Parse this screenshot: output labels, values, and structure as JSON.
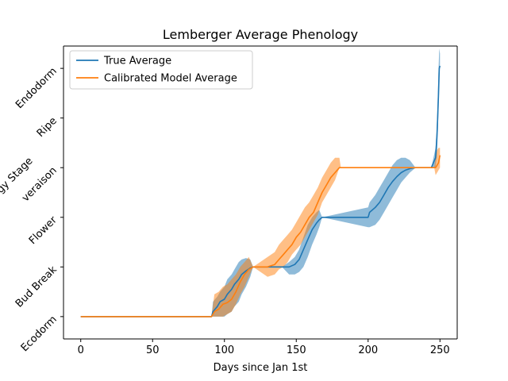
{
  "chart_data": {
    "type": "line",
    "title": "Lemberger Average Phenology",
    "xlabel": "Days since Jan 1st",
    "ylabel": "Phenology Stage",
    "xlim": [
      -12,
      262
    ],
    "ylim": [
      -0.45,
      5.45
    ],
    "x_ticks": [
      0,
      50,
      100,
      150,
      200,
      250
    ],
    "y_ticks": [
      {
        "value": 0,
        "label": "Ecodorm"
      },
      {
        "value": 1,
        "label": "Bud Break"
      },
      {
        "value": 2,
        "label": "Flower"
      },
      {
        "value": 3,
        "label": "veraison"
      },
      {
        "value": 4,
        "label": "Ripe"
      },
      {
        "value": 5,
        "label": "Endodorm"
      }
    ],
    "legend_position": "top-left",
    "grid": false,
    "series": [
      {
        "name": "True Average",
        "color": "#1f77b4",
        "band_color": "#1f77b4",
        "x": [
          0,
          91,
          92,
          95,
          97,
          100,
          102,
          105,
          107,
          110,
          112,
          115,
          118,
          120,
          125,
          130,
          140,
          145,
          149,
          152,
          155,
          158,
          161,
          164,
          166,
          168,
          200,
          201,
          205,
          208,
          211,
          214,
          217,
          220,
          223,
          226,
          229,
          233,
          244,
          247,
          248,
          249,
          249.5,
          250
        ],
        "y": [
          0,
          0,
          0.1,
          0.2,
          0.3,
          0.35,
          0.45,
          0.55,
          0.65,
          0.75,
          0.85,
          0.92,
          0.98,
          1.0,
          1.0,
          1.0,
          1.0,
          1.0,
          1.05,
          1.15,
          1.35,
          1.55,
          1.75,
          1.88,
          1.95,
          2.0,
          2.0,
          2.1,
          2.2,
          2.3,
          2.45,
          2.6,
          2.72,
          2.82,
          2.9,
          2.95,
          2.98,
          3.0,
          3.0,
          3.2,
          3.7,
          4.5,
          5.0,
          5.05
        ],
        "lower": [
          0,
          0,
          0,
          0,
          0.0,
          0.0,
          0.05,
          0.1,
          0.2,
          0.3,
          0.45,
          0.6,
          0.8,
          1.0,
          1.0,
          1.0,
          1.0,
          0.85,
          0.85,
          0.9,
          1.0,
          1.2,
          1.45,
          1.65,
          1.8,
          2.0,
          1.8,
          1.8,
          1.85,
          1.95,
          2.1,
          2.25,
          2.4,
          2.55,
          2.7,
          2.8,
          2.9,
          3.0,
          3.0,
          3.0,
          3.3,
          4.2,
          4.9,
          5.0
        ],
        "upper": [
          0,
          0,
          0.3,
          0.4,
          0.5,
          0.6,
          0.75,
          0.85,
          0.95,
          1.1,
          1.15,
          1.18,
          1.15,
          1.0,
          1.0,
          1.0,
          1.0,
          1.1,
          1.2,
          1.35,
          1.6,
          1.85,
          2.0,
          2.1,
          2.15,
          2.0,
          2.2,
          2.3,
          2.45,
          2.6,
          2.75,
          2.9,
          3.05,
          3.15,
          3.2,
          3.2,
          3.15,
          3.0,
          3.0,
          3.4,
          4.0,
          5.0,
          5.4,
          5.3
        ]
      },
      {
        "name": "Calibrated Model Average",
        "color": "#ff7f0e",
        "band_color": "#ff7f0e",
        "x": [
          0,
          91,
          93,
          96,
          99,
          102,
          105,
          108,
          111,
          114,
          117,
          120,
          130,
          135,
          138,
          141,
          144,
          147,
          150,
          153,
          156,
          159,
          162,
          165,
          168,
          171,
          174,
          177,
          180,
          181,
          200,
          246,
          247,
          248,
          249,
          250
        ],
        "y": [
          0,
          0,
          0.1,
          0.15,
          0.25,
          0.28,
          0.35,
          0.5,
          0.7,
          0.85,
          0.95,
          1.0,
          1.0,
          1.05,
          1.15,
          1.25,
          1.35,
          1.45,
          1.6,
          1.7,
          1.85,
          2.0,
          2.1,
          2.3,
          2.5,
          2.65,
          2.8,
          2.9,
          3.0,
          3.0,
          3.0,
          3.0,
          3.0,
          3.05,
          3.1,
          3.25
        ],
        "lower": [
          0,
          0,
          0,
          0.0,
          0.0,
          0.05,
          0.1,
          0.25,
          0.45,
          0.6,
          0.8,
          1.0,
          0.8,
          0.85,
          0.95,
          1.0,
          1.1,
          1.25,
          1.35,
          1.45,
          1.6,
          1.75,
          1.9,
          2.05,
          2.3,
          2.45,
          2.6,
          2.75,
          3.0,
          3.0,
          3.0,
          3.0,
          2.85,
          2.9,
          2.95,
          3.0
        ],
        "upper": [
          0,
          0,
          0.45,
          0.5,
          0.6,
          0.65,
          0.75,
          0.85,
          1.0,
          1.1,
          1.2,
          1.0,
          1.2,
          1.3,
          1.45,
          1.55,
          1.65,
          1.75,
          1.9,
          2.05,
          2.2,
          2.3,
          2.45,
          2.6,
          2.8,
          2.95,
          3.1,
          3.2,
          3.2,
          3.0,
          3.0,
          3.0,
          3.2,
          3.35,
          3.4,
          3.4
        ]
      }
    ]
  }
}
